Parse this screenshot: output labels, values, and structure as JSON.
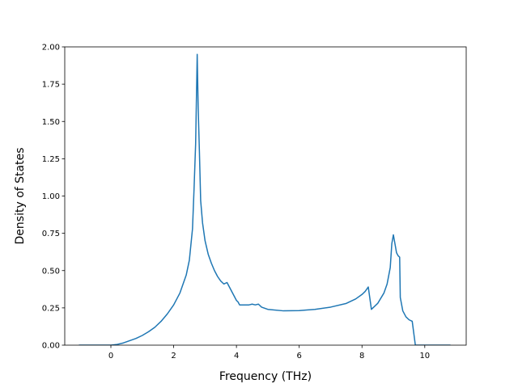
{
  "chart_data": {
    "type": "line",
    "title": "",
    "xlabel": "Frequency (THz)",
    "ylabel": "Density of States",
    "xlim": [
      -1.47,
      11.32
    ],
    "ylim": [
      0.0,
      2.0
    ],
    "xticks": [
      0,
      2,
      4,
      6,
      8,
      10
    ],
    "yticks": [
      0.0,
      0.25,
      0.5,
      0.75,
      1.0,
      1.25,
      1.5,
      1.75,
      2.0
    ],
    "xtick_labels": [
      "0",
      "2",
      "4",
      "6",
      "8",
      "10"
    ],
    "ytick_labels": [
      "0.00",
      "0.25",
      "0.50",
      "0.75",
      "1.00",
      "1.25",
      "1.50",
      "1.75",
      "2.00"
    ],
    "grid": false,
    "legend": "none",
    "series": [
      {
        "color": "#1f77b4",
        "x": [
          -1.0,
          -0.5,
          0.0,
          0.2,
          0.4,
          0.6,
          0.8,
          1.0,
          1.2,
          1.4,
          1.6,
          1.8,
          2.0,
          2.2,
          2.4,
          2.5,
          2.6,
          2.65,
          2.7,
          2.75,
          2.78,
          2.82,
          2.86,
          2.92,
          3.0,
          3.1,
          3.2,
          3.3,
          3.4,
          3.5,
          3.6,
          3.7,
          3.8,
          3.9,
          4.0,
          4.05,
          4.1,
          4.2,
          4.4,
          4.5,
          4.6,
          4.7,
          4.8,
          5.0,
          5.5,
          6.0,
          6.5,
          7.0,
          7.5,
          7.8,
          8.0,
          8.1,
          8.2,
          8.3,
          8.5,
          8.7,
          8.8,
          8.9,
          8.95,
          9.0,
          9.05,
          9.1,
          9.15,
          9.2,
          9.22,
          9.3,
          9.4,
          9.5,
          9.6,
          9.7,
          9.8,
          10.0,
          10.8
        ],
        "y": [
          0.0,
          0.0,
          0.0,
          0.005,
          0.015,
          0.03,
          0.045,
          0.065,
          0.09,
          0.12,
          0.16,
          0.21,
          0.27,
          0.35,
          0.47,
          0.57,
          0.78,
          1.05,
          1.35,
          1.95,
          1.6,
          1.3,
          0.97,
          0.82,
          0.7,
          0.61,
          0.55,
          0.5,
          0.46,
          0.43,
          0.41,
          0.42,
          0.38,
          0.34,
          0.3,
          0.29,
          0.27,
          0.27,
          0.27,
          0.275,
          0.27,
          0.275,
          0.255,
          0.24,
          0.23,
          0.232,
          0.24,
          0.255,
          0.28,
          0.31,
          0.34,
          0.36,
          0.39,
          0.24,
          0.28,
          0.35,
          0.41,
          0.52,
          0.68,
          0.74,
          0.68,
          0.62,
          0.6,
          0.59,
          0.32,
          0.23,
          0.19,
          0.17,
          0.16,
          0.0,
          0.0,
          0.0,
          0.0
        ]
      }
    ]
  }
}
